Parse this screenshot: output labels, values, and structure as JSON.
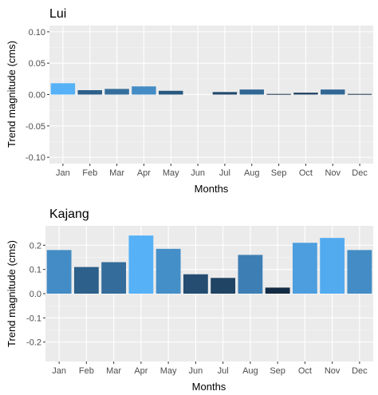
{
  "chart_data": [
    {
      "type": "bar",
      "title": "Lui",
      "xlabel": "Months",
      "ylabel": "Trend magnitude (cms)",
      "categories": [
        "Jan",
        "Feb",
        "Mar",
        "Apr",
        "May",
        "Jun",
        "Jul",
        "Aug",
        "Sep",
        "Oct",
        "Nov",
        "Dec"
      ],
      "values": [
        0.018,
        0.007,
        0.009,
        0.013,
        0.006,
        0.0,
        0.004,
        0.008,
        0.001,
        0.003,
        0.008,
        0.001
      ],
      "ylim": [
        -0.11,
        0.11
      ],
      "yticks": [
        -0.1,
        -0.05,
        0.0,
        0.05,
        0.1
      ],
      "ytick_labels": [
        "-0.10",
        "-0.05",
        "0.00",
        "0.05",
        "0.10"
      ],
      "fill_scale": [
        "#132b43",
        "#56b1f7"
      ],
      "grid": true,
      "legend": "none"
    },
    {
      "type": "bar",
      "title": "Kajang",
      "xlabel": "Months",
      "ylabel": "Trend magnitude (cms)",
      "categories": [
        "Jan",
        "Feb",
        "Mar",
        "Apr",
        "May",
        "Jun",
        "Jul",
        "Aug",
        "Sep",
        "Oct",
        "Nov",
        "Dec"
      ],
      "values": [
        0.18,
        0.11,
        0.13,
        0.24,
        0.185,
        0.08,
        0.065,
        0.16,
        0.025,
        0.21,
        0.23,
        0.18
      ],
      "ylim": [
        -0.28,
        0.28
      ],
      "yticks": [
        -0.2,
        -0.1,
        0.0,
        0.1,
        0.2
      ],
      "ytick_labels": [
        "-0.2",
        "-0.1",
        "0.0",
        "0.1",
        "0.2"
      ],
      "fill_scale": [
        "#132b43",
        "#56b1f7"
      ],
      "grid": true,
      "legend": "none"
    }
  ]
}
